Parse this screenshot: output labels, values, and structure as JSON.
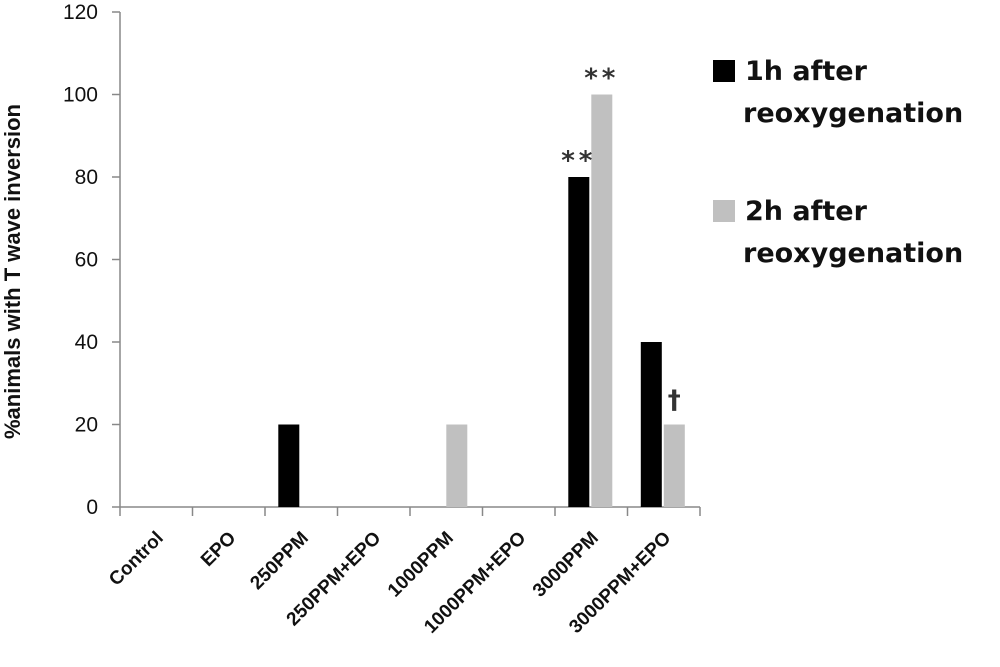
{
  "chart_data": {
    "type": "bar",
    "categories": [
      "Control",
      "EPO",
      "250PPM",
      "250PPM+EPO",
      "1000PPM",
      "1000PPM+EPO",
      "3000PPM",
      "3000PPM+EPO"
    ],
    "series": [
      {
        "name_lines": [
          "1h after",
          "reoxygenation"
        ],
        "color": "#000000",
        "values": [
          0,
          0,
          20,
          0,
          0,
          0,
          80,
          40
        ]
      },
      {
        "name_lines": [
          "2h after",
          "reoxygenation"
        ],
        "color": "#c0c0c0",
        "values": [
          0,
          0,
          0,
          0,
          20,
          0,
          100,
          20
        ]
      }
    ],
    "ylabel": "%animals with T wave inversion",
    "ylim": [
      0,
      120
    ],
    "yticks": [
      0,
      20,
      40,
      60,
      80,
      100,
      120
    ],
    "annotations": [
      {
        "category": "3000PPM",
        "series": 0,
        "text": "**"
      },
      {
        "category": "3000PPM",
        "series": 1,
        "text": "**"
      },
      {
        "category": "3000PPM+EPO",
        "series": 1,
        "text": "†"
      }
    ],
    "legend": "right",
    "grid": false
  }
}
